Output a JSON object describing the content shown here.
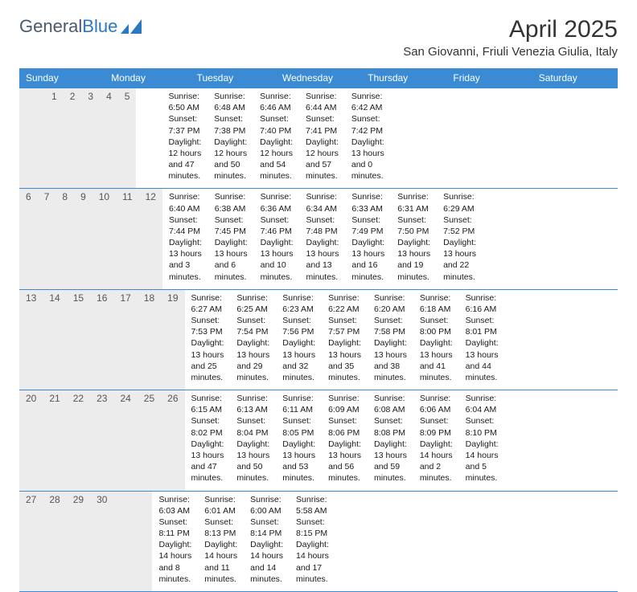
{
  "logo": {
    "text1": "General",
    "text2": "Blue"
  },
  "title": "April 2025",
  "location": "San Giovanni, Friuli Venezia Giulia, Italy",
  "colors": {
    "header_bg": "#3b8bd4",
    "header_text": "#ffffff",
    "daynum_bg": "#ececec",
    "border": "#3b8bd4",
    "logo_gray": "#4a5a6a",
    "logo_blue": "#2a78c0"
  },
  "weekdays": [
    "Sunday",
    "Monday",
    "Tuesday",
    "Wednesday",
    "Thursday",
    "Friday",
    "Saturday"
  ],
  "weeks": [
    [
      {
        "day": "",
        "sunrise": "",
        "sunset": "",
        "daylight": ""
      },
      {
        "day": "",
        "sunrise": "",
        "sunset": "",
        "daylight": ""
      },
      {
        "day": "1",
        "sunrise": "Sunrise: 6:50 AM",
        "sunset": "Sunset: 7:37 PM",
        "daylight": "Daylight: 12 hours and 47 minutes."
      },
      {
        "day": "2",
        "sunrise": "Sunrise: 6:48 AM",
        "sunset": "Sunset: 7:38 PM",
        "daylight": "Daylight: 12 hours and 50 minutes."
      },
      {
        "day": "3",
        "sunrise": "Sunrise: 6:46 AM",
        "sunset": "Sunset: 7:40 PM",
        "daylight": "Daylight: 12 hours and 54 minutes."
      },
      {
        "day": "4",
        "sunrise": "Sunrise: 6:44 AM",
        "sunset": "Sunset: 7:41 PM",
        "daylight": "Daylight: 12 hours and 57 minutes."
      },
      {
        "day": "5",
        "sunrise": "Sunrise: 6:42 AM",
        "sunset": "Sunset: 7:42 PM",
        "daylight": "Daylight: 13 hours and 0 minutes."
      }
    ],
    [
      {
        "day": "6",
        "sunrise": "Sunrise: 6:40 AM",
        "sunset": "Sunset: 7:44 PM",
        "daylight": "Daylight: 13 hours and 3 minutes."
      },
      {
        "day": "7",
        "sunrise": "Sunrise: 6:38 AM",
        "sunset": "Sunset: 7:45 PM",
        "daylight": "Daylight: 13 hours and 6 minutes."
      },
      {
        "day": "8",
        "sunrise": "Sunrise: 6:36 AM",
        "sunset": "Sunset: 7:46 PM",
        "daylight": "Daylight: 13 hours and 10 minutes."
      },
      {
        "day": "9",
        "sunrise": "Sunrise: 6:34 AM",
        "sunset": "Sunset: 7:48 PM",
        "daylight": "Daylight: 13 hours and 13 minutes."
      },
      {
        "day": "10",
        "sunrise": "Sunrise: 6:33 AM",
        "sunset": "Sunset: 7:49 PM",
        "daylight": "Daylight: 13 hours and 16 minutes."
      },
      {
        "day": "11",
        "sunrise": "Sunrise: 6:31 AM",
        "sunset": "Sunset: 7:50 PM",
        "daylight": "Daylight: 13 hours and 19 minutes."
      },
      {
        "day": "12",
        "sunrise": "Sunrise: 6:29 AM",
        "sunset": "Sunset: 7:52 PM",
        "daylight": "Daylight: 13 hours and 22 minutes."
      }
    ],
    [
      {
        "day": "13",
        "sunrise": "Sunrise: 6:27 AM",
        "sunset": "Sunset: 7:53 PM",
        "daylight": "Daylight: 13 hours and 25 minutes."
      },
      {
        "day": "14",
        "sunrise": "Sunrise: 6:25 AM",
        "sunset": "Sunset: 7:54 PM",
        "daylight": "Daylight: 13 hours and 29 minutes."
      },
      {
        "day": "15",
        "sunrise": "Sunrise: 6:23 AM",
        "sunset": "Sunset: 7:56 PM",
        "daylight": "Daylight: 13 hours and 32 minutes."
      },
      {
        "day": "16",
        "sunrise": "Sunrise: 6:22 AM",
        "sunset": "Sunset: 7:57 PM",
        "daylight": "Daylight: 13 hours and 35 minutes."
      },
      {
        "day": "17",
        "sunrise": "Sunrise: 6:20 AM",
        "sunset": "Sunset: 7:58 PM",
        "daylight": "Daylight: 13 hours and 38 minutes."
      },
      {
        "day": "18",
        "sunrise": "Sunrise: 6:18 AM",
        "sunset": "Sunset: 8:00 PM",
        "daylight": "Daylight: 13 hours and 41 minutes."
      },
      {
        "day": "19",
        "sunrise": "Sunrise: 6:16 AM",
        "sunset": "Sunset: 8:01 PM",
        "daylight": "Daylight: 13 hours and 44 minutes."
      }
    ],
    [
      {
        "day": "20",
        "sunrise": "Sunrise: 6:15 AM",
        "sunset": "Sunset: 8:02 PM",
        "daylight": "Daylight: 13 hours and 47 minutes."
      },
      {
        "day": "21",
        "sunrise": "Sunrise: 6:13 AM",
        "sunset": "Sunset: 8:04 PM",
        "daylight": "Daylight: 13 hours and 50 minutes."
      },
      {
        "day": "22",
        "sunrise": "Sunrise: 6:11 AM",
        "sunset": "Sunset: 8:05 PM",
        "daylight": "Daylight: 13 hours and 53 minutes."
      },
      {
        "day": "23",
        "sunrise": "Sunrise: 6:09 AM",
        "sunset": "Sunset: 8:06 PM",
        "daylight": "Daylight: 13 hours and 56 minutes."
      },
      {
        "day": "24",
        "sunrise": "Sunrise: 6:08 AM",
        "sunset": "Sunset: 8:08 PM",
        "daylight": "Daylight: 13 hours and 59 minutes."
      },
      {
        "day": "25",
        "sunrise": "Sunrise: 6:06 AM",
        "sunset": "Sunset: 8:09 PM",
        "daylight": "Daylight: 14 hours and 2 minutes."
      },
      {
        "day": "26",
        "sunrise": "Sunrise: 6:04 AM",
        "sunset": "Sunset: 8:10 PM",
        "daylight": "Daylight: 14 hours and 5 minutes."
      }
    ],
    [
      {
        "day": "27",
        "sunrise": "Sunrise: 6:03 AM",
        "sunset": "Sunset: 8:11 PM",
        "daylight": "Daylight: 14 hours and 8 minutes."
      },
      {
        "day": "28",
        "sunrise": "Sunrise: 6:01 AM",
        "sunset": "Sunset: 8:13 PM",
        "daylight": "Daylight: 14 hours and 11 minutes."
      },
      {
        "day": "29",
        "sunrise": "Sunrise: 6:00 AM",
        "sunset": "Sunset: 8:14 PM",
        "daylight": "Daylight: 14 hours and 14 minutes."
      },
      {
        "day": "30",
        "sunrise": "Sunrise: 5:58 AM",
        "sunset": "Sunset: 8:15 PM",
        "daylight": "Daylight: 14 hours and 17 minutes."
      },
      {
        "day": "",
        "sunrise": "",
        "sunset": "",
        "daylight": ""
      },
      {
        "day": "",
        "sunrise": "",
        "sunset": "",
        "daylight": ""
      },
      {
        "day": "",
        "sunrise": "",
        "sunset": "",
        "daylight": ""
      }
    ]
  ]
}
